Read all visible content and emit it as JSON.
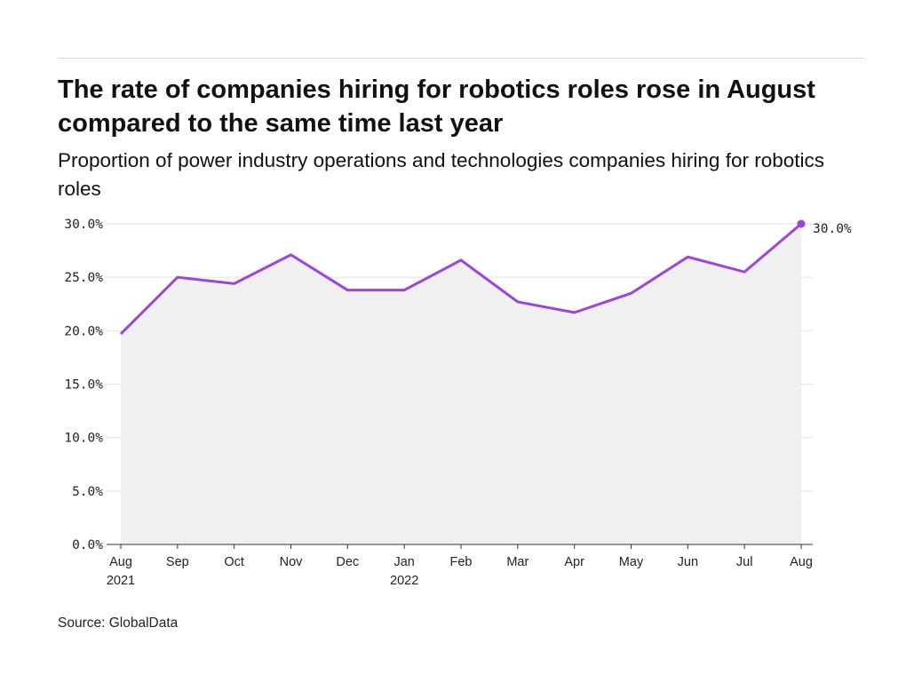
{
  "title": "The rate of companies hiring for robotics roles rose in August compared to the same time last year",
  "subtitle": "Proportion of power industry operations and technologies companies hiring for robotics roles",
  "source": "Source: GlobalData",
  "chart_data": {
    "type": "area",
    "categories": [
      [
        "Aug",
        "2021"
      ],
      [
        "Sep",
        ""
      ],
      [
        "Oct",
        ""
      ],
      [
        "Nov",
        ""
      ],
      [
        "Dec",
        ""
      ],
      [
        "Jan",
        "2022"
      ],
      [
        "Feb",
        ""
      ],
      [
        "Mar",
        ""
      ],
      [
        "Apr",
        ""
      ],
      [
        "May",
        ""
      ],
      [
        "Jun",
        ""
      ],
      [
        "Jul",
        ""
      ],
      [
        "Aug",
        ""
      ]
    ],
    "values": [
      19.7,
      25.0,
      24.4,
      27.1,
      23.8,
      23.8,
      26.6,
      22.7,
      21.7,
      23.5,
      26.9,
      25.5,
      30.0
    ],
    "yticks": [
      "0.0%",
      "5.0%",
      "10.0%",
      "15.0%",
      "20.0%",
      "25.0%",
      "30.0%"
    ],
    "ylim": [
      0,
      30
    ],
    "grid": true,
    "end_label": "30.0%",
    "colors": {
      "line": "#9b45e0",
      "fill": "#f0f0f0",
      "grid": "#e2e2e2"
    }
  }
}
